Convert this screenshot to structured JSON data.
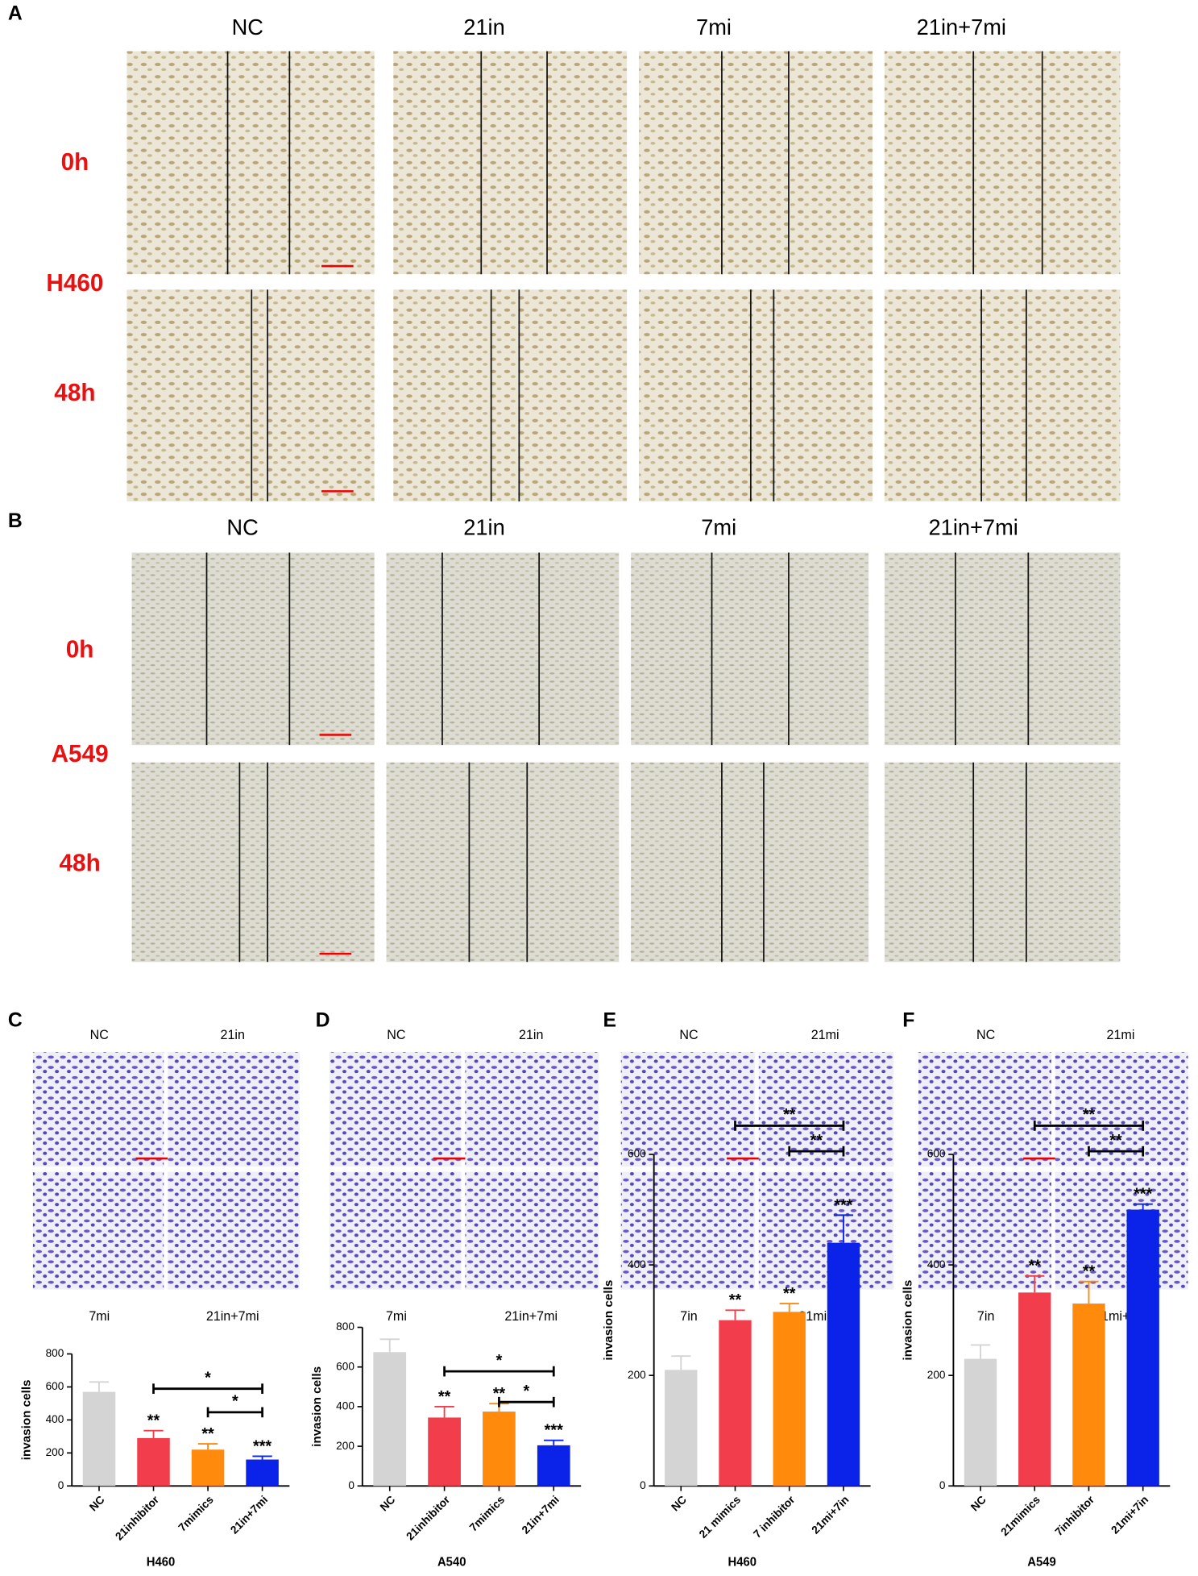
{
  "figure": {
    "panel_A": {
      "letter": "A",
      "columns": [
        "NC",
        "21in",
        "7mi",
        "21in+7mi"
      ],
      "rows": [
        "0h",
        "48h"
      ],
      "cell_line": "H460"
    },
    "panel_B": {
      "letter": "B",
      "columns": [
        "NC",
        "21in",
        "7mi",
        "21in+7mi"
      ],
      "rows": [
        "0h",
        "48h"
      ],
      "cell_line": "A549"
    },
    "panel_C": {
      "letter": "C",
      "labels": [
        "NC",
        "21in",
        "7mi",
        "21in+7mi"
      ]
    },
    "panel_D": {
      "letter": "D",
      "labels": [
        "NC",
        "21in",
        "7mi",
        "21in+7mi"
      ]
    },
    "panel_E": {
      "letter": "E",
      "labels": [
        "NC",
        "21mi",
        "7in",
        "21mi+7in"
      ]
    },
    "panel_F": {
      "letter": "F",
      "labels": [
        "NC",
        "21mi",
        "7in",
        "21mi+7in"
      ]
    }
  },
  "chart_data": [
    {
      "type": "bar",
      "y_label": "invasion cells",
      "x_label": "H460",
      "categories": [
        "NC",
        "21inhibitor",
        "7mimics",
        "21in+7mi"
      ],
      "values": [
        570,
        290,
        220,
        160
      ],
      "errors": [
        60,
        45,
        35,
        20
      ],
      "colors": [
        "#d4d4d4",
        "#f23e4c",
        "#ff8a0c",
        "#0b22e8"
      ],
      "ylim": [
        0,
        800
      ],
      "yticks": [
        0,
        200,
        400,
        600,
        800
      ],
      "annotations": [
        {
          "category": "21inhibitor",
          "label": "**"
        },
        {
          "category": "7mimics",
          "label": "**"
        },
        {
          "category": "21in+7mi",
          "label": "***"
        }
      ],
      "brackets": [
        {
          "from": "21inhibitor",
          "to": "21in+7mi",
          "label": "*"
        },
        {
          "from": "7mimics",
          "to": "21in+7mi",
          "label": "*"
        }
      ]
    },
    {
      "type": "bar",
      "y_label": "invasion cells",
      "x_label": "A540",
      "categories": [
        "NC",
        "21inhibitor",
        "7mimics",
        "21in+7mi"
      ],
      "values": [
        675,
        345,
        375,
        205
      ],
      "errors": [
        65,
        55,
        40,
        25
      ],
      "colors": [
        "#d4d4d4",
        "#f23e4c",
        "#ff8a0c",
        "#0b22e8"
      ],
      "ylim": [
        0,
        800
      ],
      "yticks": [
        0,
        200,
        400,
        600,
        800
      ],
      "annotations": [
        {
          "category": "21inhibitor",
          "label": "**"
        },
        {
          "category": "7mimics",
          "label": "**"
        },
        {
          "category": "21in+7mi",
          "label": "***"
        }
      ],
      "brackets": [
        {
          "from": "21inhibitor",
          "to": "21in+7mi",
          "label": "*"
        },
        {
          "from": "7mimics",
          "to": "21in+7mi",
          "label": "*"
        }
      ]
    },
    {
      "type": "bar",
      "y_label": "invasion cells",
      "x_label": "H460",
      "categories": [
        "NC",
        "21 mimics",
        "7 inhibitor",
        "21mi+7in"
      ],
      "values": [
        210,
        300,
        315,
        440
      ],
      "errors": [
        25,
        18,
        15,
        50
      ],
      "colors": [
        "#d4d4d4",
        "#f23e4c",
        "#ff8a0c",
        "#0b22e8"
      ],
      "ylim": [
        0,
        600
      ],
      "yticks": [
        0,
        200,
        400,
        600
      ],
      "annotations": [
        {
          "category": "21 mimics",
          "label": "**"
        },
        {
          "category": "7 inhibitor",
          "label": "**"
        },
        {
          "category": "21mi+7in",
          "label": "***"
        }
      ],
      "brackets": [
        {
          "from": "21 mimics",
          "to": "21mi+7in",
          "label": "**"
        },
        {
          "from": "7 inhibitor",
          "to": "21mi+7in",
          "label": "**"
        }
      ]
    },
    {
      "type": "bar",
      "y_label": "invasion cells",
      "x_label": "A549",
      "categories": [
        "NC",
        "21mimics",
        "7inhibitor",
        "21mi+7in"
      ],
      "values": [
        230,
        350,
        330,
        500
      ],
      "errors": [
        25,
        30,
        40,
        10
      ],
      "colors": [
        "#d4d4d4",
        "#f23e4c",
        "#ff8a0c",
        "#0b22e8"
      ],
      "ylim": [
        0,
        600
      ],
      "yticks": [
        0,
        200,
        400,
        600
      ],
      "annotations": [
        {
          "category": "21mimics",
          "label": "**"
        },
        {
          "category": "7inhibitor",
          "label": "**"
        },
        {
          "category": "21mi+7in",
          "label": "***"
        }
      ],
      "brackets": [
        {
          "from": "21mimics",
          "to": "21mi+7in",
          "label": "**"
        },
        {
          "from": "7inhibitor",
          "to": "21mi+7in",
          "label": "**"
        }
      ]
    }
  ]
}
